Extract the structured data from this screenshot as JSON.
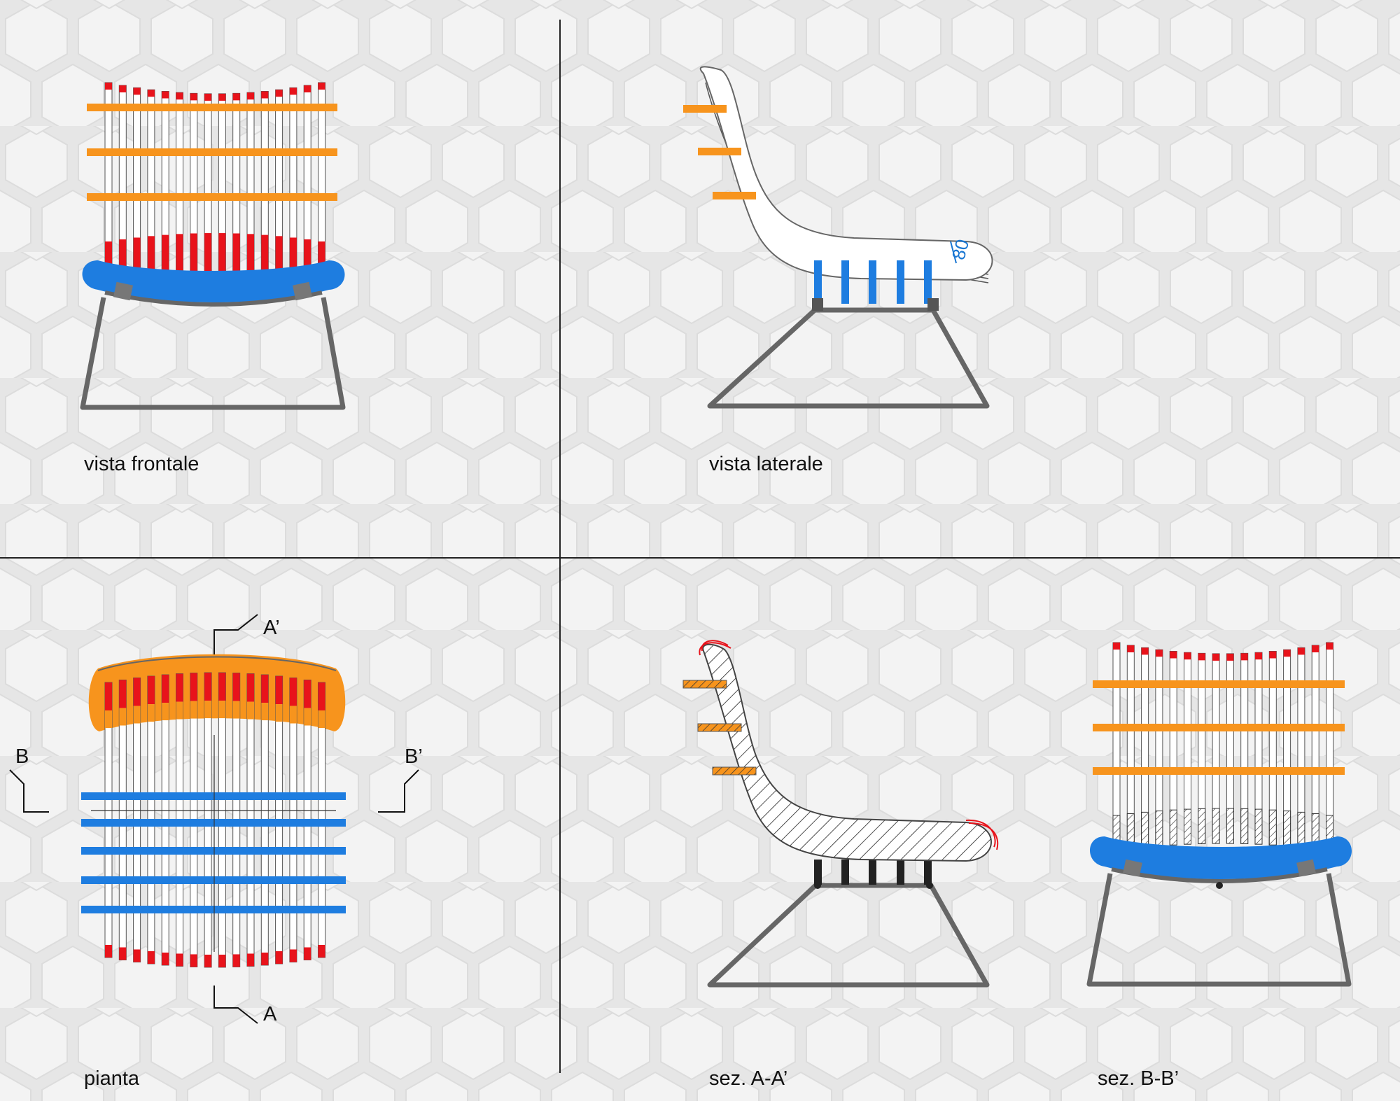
{
  "views": {
    "front": "vista frontale",
    "side": "vista laterale",
    "plan": "pianta",
    "sectionAA": "sez. A-A’",
    "sectionBB": "sez. B-B’"
  },
  "section_marks": {
    "a": "A",
    "a_prime": "A’",
    "b": "B",
    "b_prime": "B’"
  },
  "dimension_text": "80",
  "colors": {
    "background": "#e6e6e6",
    "hexagon": "#f3f3f3",
    "rod_cap": "#e8131b",
    "orange_bar": "#f7941d",
    "blue_bar": "#1e7de0",
    "frame": "#666666",
    "divider": "#222222"
  }
}
